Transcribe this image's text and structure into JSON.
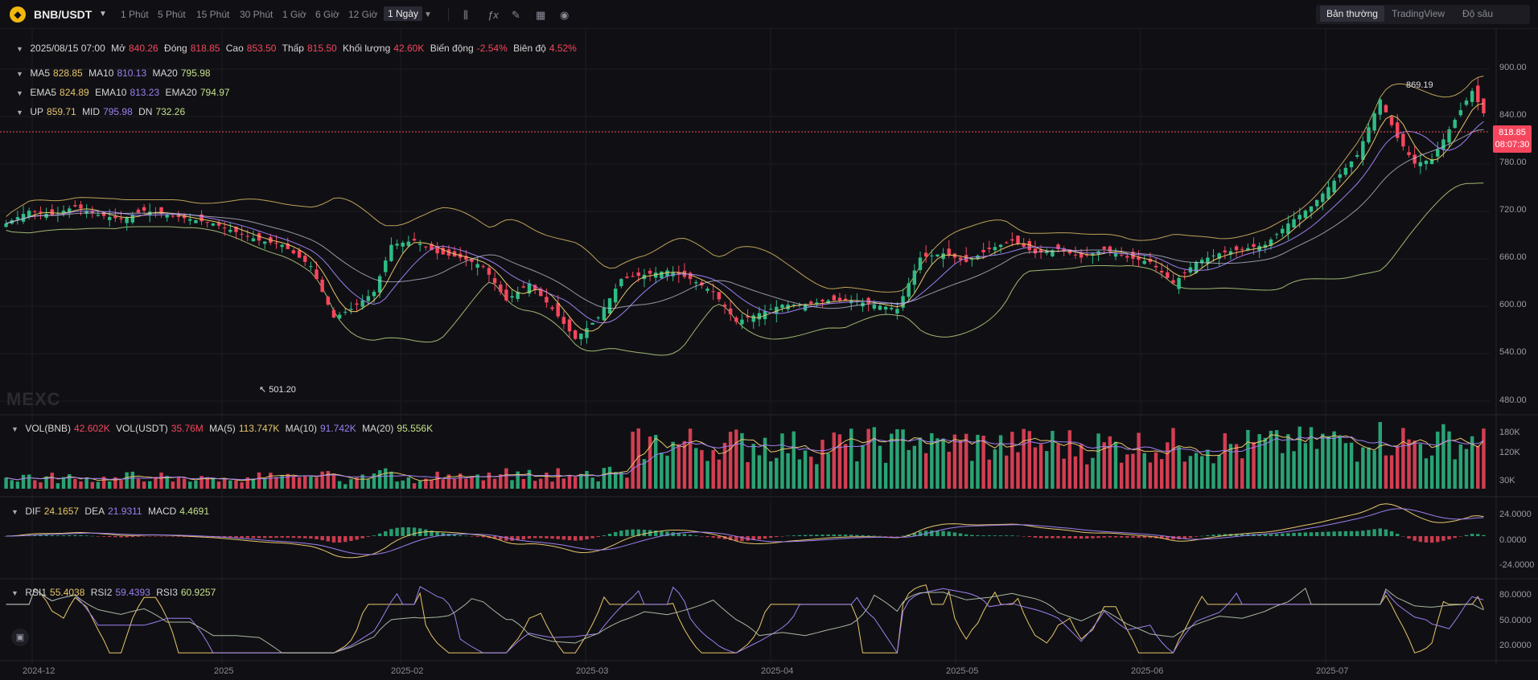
{
  "header": {
    "logo_icon": "bnb-logo-icon",
    "symbol": "BNB/USDT",
    "timeframes": [
      "1 Phút",
      "5 Phút",
      "15 Phút",
      "30 Phút",
      "1 Giờ",
      "6 Giờ",
      "12 Giờ",
      "1 Ngày"
    ],
    "active_timeframe": "1 Ngày",
    "tools": [
      "candle-type-icon",
      "indicator-fx-icon",
      "draw-pencil-icon",
      "layout-grid-icon",
      "camera-icon"
    ],
    "views": [
      "Bản thường",
      "TradingView",
      "Độ sâu"
    ],
    "active_view": "Bản thường"
  },
  "ohlc": {
    "date": "2025/08/15 07:00",
    "open_label": "Mở",
    "open": "840.26",
    "close_label": "Đóng",
    "close": "818.85",
    "high_label": "Cao",
    "high": "853.50",
    "low_label": "Thấp",
    "low": "815.50",
    "vol_label": "Khối lượng",
    "vol": "42.60K",
    "change_label": "Biến động",
    "change": "-2.54%",
    "amp_label": "Biên độ",
    "amp": "4.52%"
  },
  "ma": {
    "ma5_label": "MA5",
    "ma5": "828.85",
    "ma10_label": "MA10",
    "ma10": "810.13",
    "ma20_label": "MA20",
    "ma20": "795.98"
  },
  "ema": {
    "ema5_label": "EMA5",
    "ema5": "824.89",
    "ema10_label": "EMA10",
    "ema10": "813.23",
    "ema20_label": "EMA20",
    "ema20": "794.97"
  },
  "boll": {
    "up_label": "UP",
    "up": "859.71",
    "mid_label": "MID",
    "mid": "795.98",
    "dn_label": "DN",
    "dn": "732.26"
  },
  "vol": {
    "vol_bnb_label": "VOL(BNB)",
    "vol_bnb": "42.602K",
    "vol_usdt_label": "VOL(USDT)",
    "vol_usdt": "35.76M",
    "ma5_label": "MA(5)",
    "ma5": "113.747K",
    "ma10_label": "MA(10)",
    "ma10": "91.742K",
    "ma20_label": "MA(20)",
    "ma20": "95.556K"
  },
  "macd": {
    "dif_label": "DIF",
    "dif": "24.1657",
    "dea_label": "DEA",
    "dea": "21.9311",
    "macd_label": "MACD",
    "macd": "4.4691"
  },
  "rsi": {
    "rsi1_label": "RSI1",
    "rsi1": "55.4038",
    "rsi2_label": "RSI2",
    "rsi2": "59.4393",
    "rsi3_label": "RSI3",
    "rsi3": "60.9257"
  },
  "last_price": {
    "price": "818.85",
    "countdown": "08:07:30"
  },
  "annotations": {
    "max": "869.19",
    "min": "501.20"
  },
  "watermark": "MEXC",
  "colors": {
    "up": "#2ebd85",
    "down": "#f6465d",
    "ma5": "#e8c66a",
    "ma10": "#9d7ff0",
    "ma20": "#c6e08a"
  },
  "chart_data": {
    "type": "candlestick",
    "symbol": "BNB/USDT",
    "interval": "1 Ngày",
    "price_ticks": [
      "900.00",
      "840.00",
      "780.00",
      "720.00",
      "660.00",
      "600.00",
      "540.00",
      "480.00"
    ],
    "price_range": [
      470,
      910
    ],
    "volume_ticks": [
      "180K",
      "120K",
      "30K"
    ],
    "macd_ticks": [
      "24.0000",
      "0.0000",
      "-24.0000"
    ],
    "rsi_ticks": [
      "80.0000",
      "50.0000",
      "20.0000"
    ],
    "x_ticks": [
      "2024-12",
      "2025",
      "2025-02",
      "2025-03",
      "2025-04",
      "2025-05",
      "2025-06",
      "2025-07"
    ],
    "anchors": [
      {
        "date": "2024-12-01",
        "close": 690
      },
      {
        "date": "2024-12-05",
        "close": 705
      },
      {
        "date": "2024-12-09",
        "close": 700
      },
      {
        "date": "2024-12-13",
        "close": 710
      },
      {
        "date": "2024-12-17",
        "close": 700
      },
      {
        "date": "2024-12-21",
        "close": 695
      },
      {
        "date": "2024-12-25",
        "close": 705
      },
      {
        "date": "2024-12-29",
        "close": 700
      },
      {
        "date": "2025-01-02",
        "close": 695
      },
      {
        "date": "2025-01-06",
        "close": 690
      },
      {
        "date": "2025-01-10",
        "close": 680
      },
      {
        "date": "2025-01-14",
        "close": 670
      },
      {
        "date": "2025-01-18",
        "close": 665
      },
      {
        "date": "2025-01-23",
        "close": 640
      },
      {
        "date": "2025-01-27",
        "close": 580
      },
      {
        "date": "2025-01-30",
        "close": 590
      },
      {
        "date": "2025-02-03",
        "close": 610
      },
      {
        "date": "2025-02-06",
        "close": 665
      },
      {
        "date": "2025-02-10",
        "close": 670
      },
      {
        "date": "2025-02-14",
        "close": 655
      },
      {
        "date": "2025-02-18",
        "close": 650
      },
      {
        "date": "2025-02-22",
        "close": 640
      },
      {
        "date": "2025-02-26",
        "close": 600
      },
      {
        "date": "2025-03-02",
        "close": 620
      },
      {
        "date": "2025-03-06",
        "close": 590
      },
      {
        "date": "2025-03-10",
        "close": 555
      },
      {
        "date": "2025-03-14",
        "close": 580
      },
      {
        "date": "2025-03-18",
        "close": 625
      },
      {
        "date": "2025-03-22",
        "close": 630
      },
      {
        "date": "2025-03-26",
        "close": 635
      },
      {
        "date": "2025-03-30",
        "close": 625
      },
      {
        "date": "2025-04-03",
        "close": 610
      },
      {
        "date": "2025-04-07",
        "close": 575
      },
      {
        "date": "2025-04-11",
        "close": 585
      },
      {
        "date": "2025-04-15",
        "close": 595
      },
      {
        "date": "2025-04-19",
        "close": 595
      },
      {
        "date": "2025-04-23",
        "close": 600
      },
      {
        "date": "2025-04-27",
        "close": 600
      },
      {
        "date": "2025-05-01",
        "close": 595
      },
      {
        "date": "2025-05-05",
        "close": 590
      },
      {
        "date": "2025-05-09",
        "close": 650
      },
      {
        "date": "2025-05-13",
        "close": 655
      },
      {
        "date": "2025-05-17",
        "close": 645
      },
      {
        "date": "2025-05-21",
        "close": 660
      },
      {
        "date": "2025-05-25",
        "close": 670
      },
      {
        "date": "2025-05-29",
        "close": 655
      },
      {
        "date": "2025-06-02",
        "close": 660
      },
      {
        "date": "2025-06-06",
        "close": 650
      },
      {
        "date": "2025-06-10",
        "close": 660
      },
      {
        "date": "2025-06-14",
        "close": 650
      },
      {
        "date": "2025-06-18",
        "close": 645
      },
      {
        "date": "2025-06-22",
        "close": 620
      },
      {
        "date": "2025-06-26",
        "close": 645
      },
      {
        "date": "2025-06-30",
        "close": 655
      },
      {
        "date": "2025-07-04",
        "close": 660
      },
      {
        "date": "2025-07-08",
        "close": 665
      },
      {
        "date": "2025-07-12",
        "close": 690
      },
      {
        "date": "2025-07-16",
        "close": 710
      },
      {
        "date": "2025-07-20",
        "close": 740
      },
      {
        "date": "2025-07-24",
        "close": 770
      },
      {
        "date": "2025-07-28",
        "close": 835
      },
      {
        "date": "2025-07-31",
        "close": 790
      },
      {
        "date": "2025-08-03",
        "close": 760
      },
      {
        "date": "2025-08-06",
        "close": 765
      },
      {
        "date": "2025-08-09",
        "close": 800
      },
      {
        "date": "2025-08-13",
        "close": 845
      },
      {
        "date": "2025-08-15",
        "close": 818.85
      }
    ],
    "bollinger_up_last": 859.71,
    "bollinger_mid_last": 795.98,
    "bollinger_dn_last": 732.26
  }
}
